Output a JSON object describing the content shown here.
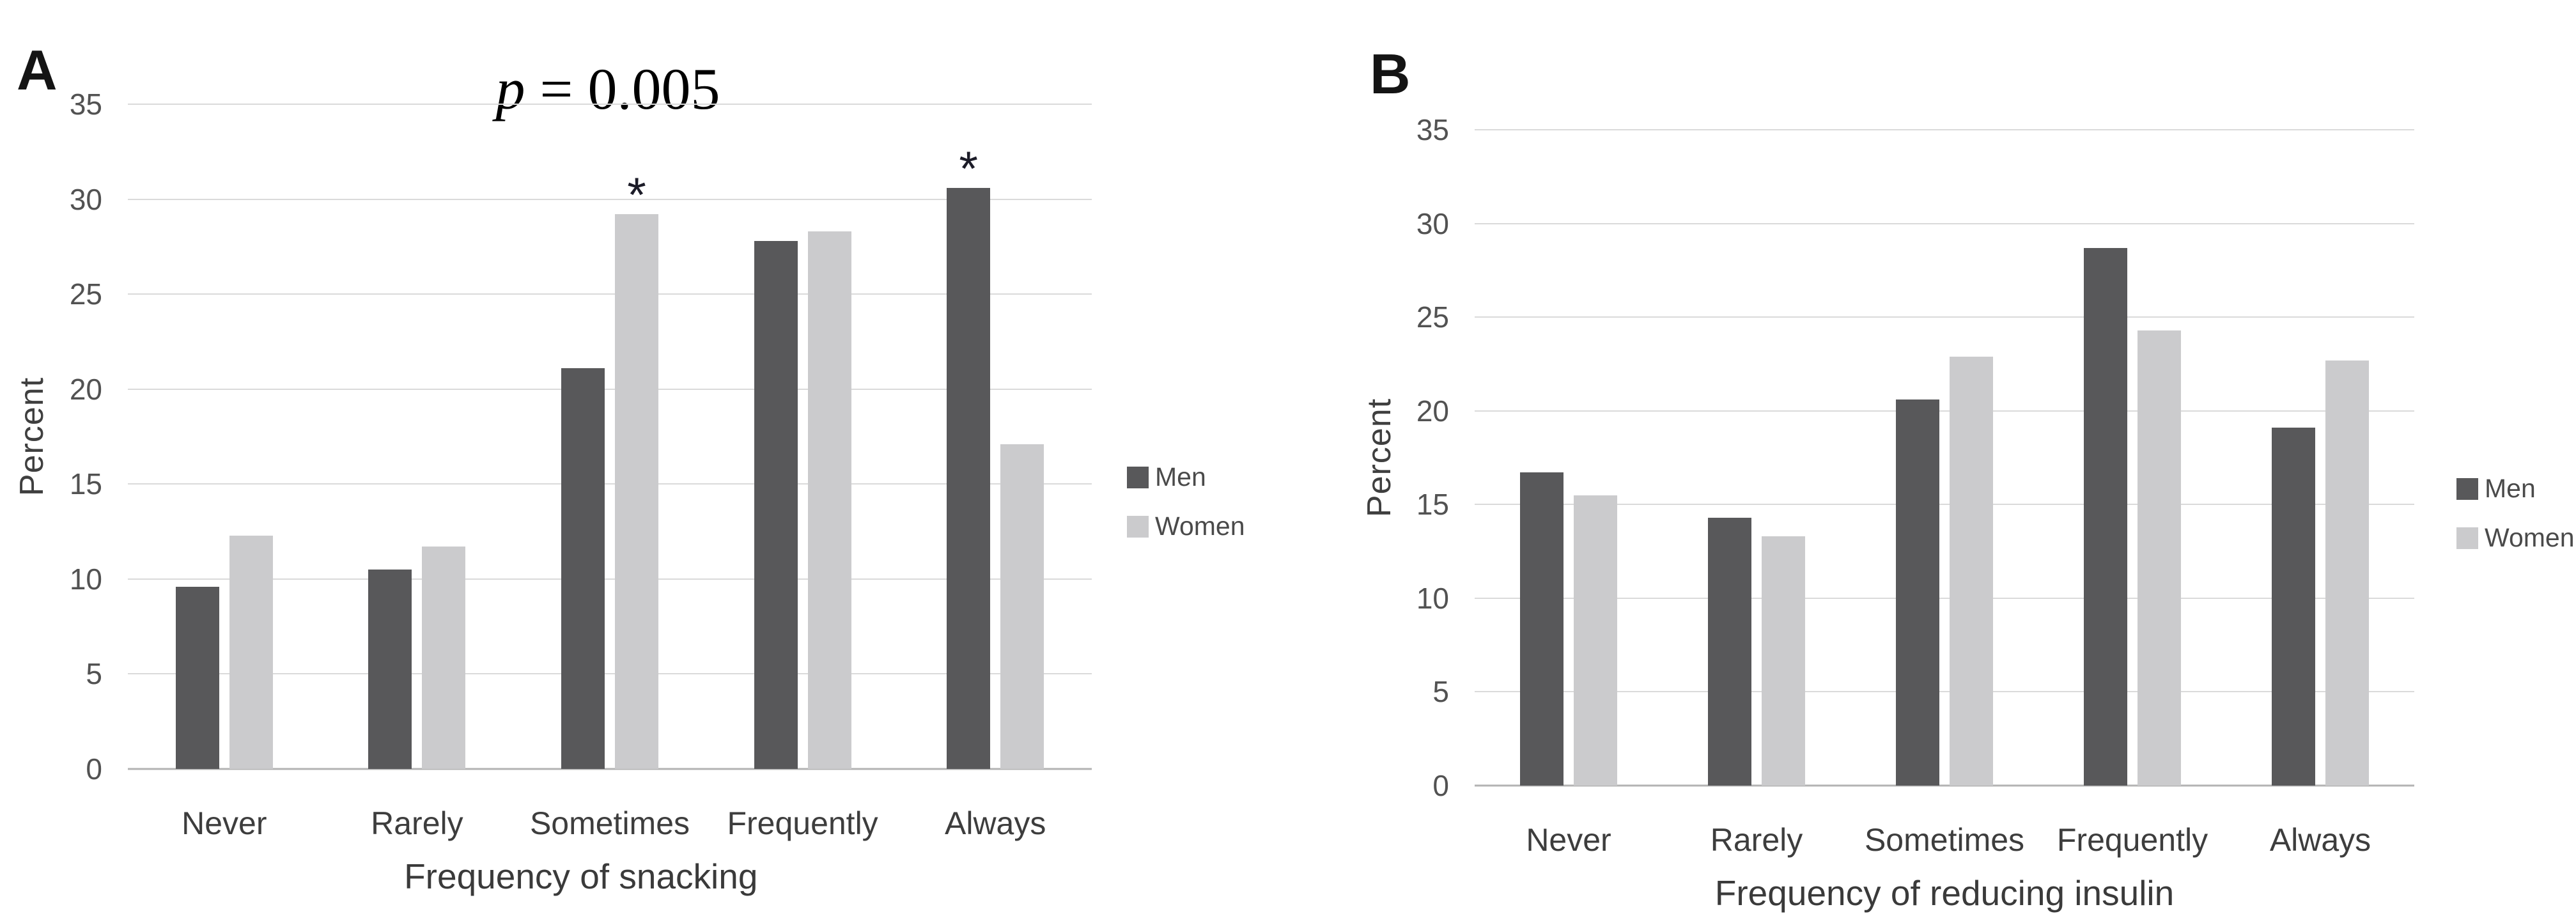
{
  "figure": {
    "background": "#ffffff",
    "sig_marker": "*",
    "colors": {
      "men": "#58585a",
      "women": "#cbcbcd",
      "gridline": "#dadada",
      "axis_line": "#b3b3b3",
      "text": "#3d3d3d"
    }
  },
  "chart_data": [
    {
      "type": "bar",
      "panel": "A",
      "annotation": {
        "var": "p",
        "rest": " = 0.005"
      },
      "xlabel": "Frequency of snacking",
      "ylabel": "Percent",
      "ylim": [
        0,
        35
      ],
      "yticks": [
        0,
        5,
        10,
        15,
        20,
        25,
        30,
        35
      ],
      "grid": true,
      "legend_position": "right",
      "categories": [
        "Never",
        "Rarely",
        "Sometimes",
        "Frequently",
        "Always"
      ],
      "series": [
        {
          "name": "Men",
          "color": "#58585a",
          "values": [
            9.6,
            10.5,
            21.1,
            27.8,
            30.6
          ],
          "significant": [
            false,
            false,
            false,
            false,
            true
          ]
        },
        {
          "name": "Women",
          "color": "#cbcbcd",
          "values": [
            12.3,
            11.7,
            29.2,
            28.3,
            17.1
          ],
          "significant": [
            false,
            false,
            true,
            false,
            false
          ]
        }
      ]
    },
    {
      "type": "bar",
      "panel": "B",
      "annotation": null,
      "xlabel": "Frequency of reducing insulin",
      "ylabel": "Percent",
      "ylim": [
        0,
        35
      ],
      "yticks": [
        0,
        5,
        10,
        15,
        20,
        25,
        30,
        35
      ],
      "grid": true,
      "legend_position": "right",
      "categories": [
        "Never",
        "Rarely",
        "Sometimes",
        "Frequently",
        "Always"
      ],
      "series": [
        {
          "name": "Men",
          "color": "#58585a",
          "values": [
            16.7,
            14.3,
            20.6,
            28.7,
            19.1
          ],
          "significant": [
            false,
            false,
            false,
            false,
            false
          ]
        },
        {
          "name": "Women",
          "color": "#cbcbcd",
          "values": [
            15.5,
            13.3,
            22.9,
            24.3,
            22.7
          ],
          "significant": [
            false,
            false,
            false,
            false,
            false
          ]
        }
      ]
    }
  ]
}
